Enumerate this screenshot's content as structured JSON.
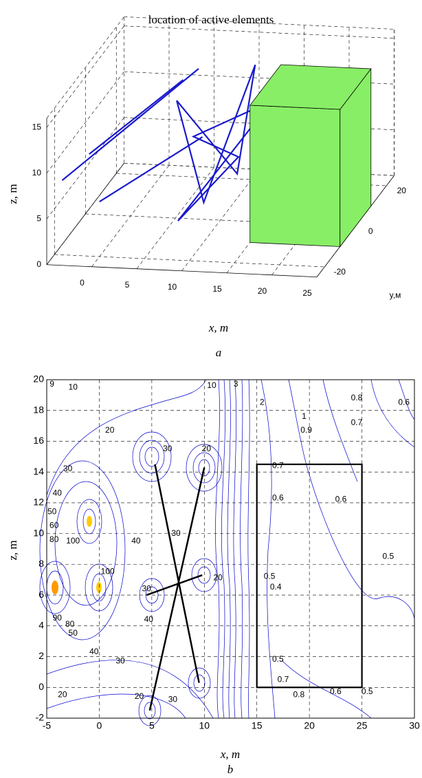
{
  "chart_data": [
    {
      "type": "line3d",
      "title": "location of active elements",
      "xlabel": "x, m",
      "ylabel": "y,м",
      "zlabel": "z, m",
      "caption": "a",
      "xlim": [
        -5,
        25
      ],
      "ylim": [
        -25,
        25
      ],
      "zlim": [
        0,
        16
      ],
      "xticks": [
        0,
        5,
        10,
        15,
        20,
        25
      ],
      "yticks": [
        -20,
        0,
        20
      ],
      "zticks": [
        0,
        5,
        10,
        15
      ],
      "grid": true,
      "wire_color": "#1a1acc",
      "wires": [
        [
          [
            -5,
            -15,
            7
          ],
          [
            5,
            15,
            13
          ]
        ],
        [
          [
            -2,
            -15,
            10
          ],
          [
            5,
            5,
            14
          ]
        ],
        [
          [
            0,
            -20,
            6
          ],
          [
            8,
            0,
            9
          ]
        ],
        [
          [
            6,
            -5,
            14
          ],
          [
            9,
            -5,
            3
          ],
          [
            13,
            5,
            16
          ],
          [
            11,
            5,
            4
          ],
          [
            6,
            -5,
            14
          ]
        ],
        [
          [
            7,
            -10,
            2
          ],
          [
            14,
            10,
            11
          ],
          [
            7,
            0,
            9
          ],
          [
            12,
            0,
            7
          ],
          [
            7,
            -10,
            2
          ]
        ]
      ],
      "box": {
        "x": [
          15,
          25
        ],
        "y": [
          -10,
          10
        ],
        "z": [
          0,
          15
        ],
        "color": "#88ee66"
      }
    },
    {
      "type": "contour",
      "xlabel": "x, m",
      "ylabel": "z, m",
      "caption": "b",
      "xlim": [
        -5,
        30
      ],
      "ylim": [
        -2,
        20
      ],
      "xticks": [
        -5,
        0,
        5,
        10,
        15,
        20,
        25,
        30
      ],
      "yticks": [
        -2,
        0,
        2,
        4,
        6,
        8,
        10,
        12,
        14,
        16,
        18,
        20
      ],
      "grid": true,
      "lines": [
        {
          "x": [
            5.3,
            9.5
          ],
          "y": [
            14.5,
            0.3
          ]
        },
        {
          "x": [
            10,
            4.8
          ],
          "y": [
            14.3,
            -1.5
          ]
        },
        {
          "x": [
            4.5,
            9.8
          ],
          "y": [
            6,
            7.3
          ]
        }
      ],
      "building": {
        "x": [
          15,
          25
        ],
        "y": [
          0,
          14.5
        ]
      },
      "contour_labels": [
        {
          "level": 9,
          "x": -4.5,
          "y": 19.7
        },
        {
          "level": 10,
          "x": -2.5,
          "y": 19.5
        },
        {
          "level": 20,
          "x": 1,
          "y": 16.7
        },
        {
          "level": 30,
          "x": -3,
          "y": 14.2
        },
        {
          "level": 40,
          "x": -4,
          "y": 12.6
        },
        {
          "level": 50,
          "x": -4.5,
          "y": 11.4
        },
        {
          "level": 60,
          "x": -4.3,
          "y": 10.5
        },
        {
          "level": 80,
          "x": -4.3,
          "y": 9.6
        },
        {
          "level": 100,
          "x": -2.5,
          "y": 9.5
        },
        {
          "level": 30,
          "x": 6.5,
          "y": 15.5
        },
        {
          "level": 20,
          "x": 10.2,
          "y": 15.5
        },
        {
          "level": 30,
          "x": 7.3,
          "y": 10
        },
        {
          "level": 40,
          "x": 3.5,
          "y": 9.5
        },
        {
          "level": 100,
          "x": 0.8,
          "y": 7.5
        },
        {
          "level": 90,
          "x": -4,
          "y": 4.5
        },
        {
          "level": 80,
          "x": -2.8,
          "y": 4.1
        },
        {
          "level": 50,
          "x": -2.5,
          "y": 3.5
        },
        {
          "level": 40,
          "x": -0.5,
          "y": 2.3
        },
        {
          "level": 30,
          "x": 2,
          "y": 1.7
        },
        {
          "level": 20,
          "x": -3.5,
          "y": -0.5
        },
        {
          "level": 30,
          "x": 7,
          "y": -0.8
        },
        {
          "level": 20,
          "x": 3.8,
          "y": -0.6
        },
        {
          "level": 30,
          "x": 4.5,
          "y": 6.4
        },
        {
          "level": 40,
          "x": 4.7,
          "y": 4.4
        },
        {
          "level": 20,
          "x": 11.3,
          "y": 7.1
        },
        {
          "level": 10,
          "x": 10.7,
          "y": 19.6
        },
        {
          "level": 3,
          "x": 13,
          "y": 19.7
        },
        {
          "level": 2,
          "x": 15.5,
          "y": 18.5
        },
        {
          "level": 1,
          "x": 19.5,
          "y": 17.6
        },
        {
          "level": 0.9,
          "x": 19.7,
          "y": 16.7
        },
        {
          "level": 0.8,
          "x": 24.5,
          "y": 18.8
        },
        {
          "level": 0.7,
          "x": 24.5,
          "y": 17.2
        },
        {
          "level": 0.6,
          "x": 29,
          "y": 18.5
        },
        {
          "level": 0.7,
          "x": 17,
          "y": 14.4
        },
        {
          "level": 0.6,
          "x": 17,
          "y": 12.3
        },
        {
          "level": 0.6,
          "x": 23,
          "y": 12.2
        },
        {
          "level": 0.5,
          "x": 27.5,
          "y": 8.5
        },
        {
          "level": 0.5,
          "x": 17,
          "y": 1.8
        },
        {
          "level": 0.7,
          "x": 17.5,
          "y": 0.5
        },
        {
          "level": 0.8,
          "x": 19,
          "y": -0.5
        },
        {
          "level": 0.6,
          "x": 22.5,
          "y": -0.3
        },
        {
          "level": 0.5,
          "x": 25.5,
          "y": -0.3
        },
        {
          "level": 0.5,
          "x": 16.2,
          "y": 7.2
        },
        {
          "level": 0.4,
          "x": 16.8,
          "y": 6.5
        }
      ]
    }
  ]
}
